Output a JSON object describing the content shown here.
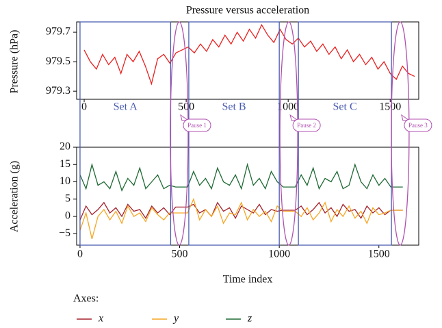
{
  "chart_data": [
    {
      "type": "line",
      "title": "Pressure versus acceleration",
      "ylabel": "Pressure (hPa)",
      "x": [
        0,
        30,
        60,
        90,
        120,
        150,
        180,
        210,
        240,
        270,
        300,
        330,
        360,
        390,
        420,
        450,
        480,
        510,
        540,
        570,
        600,
        630,
        660,
        690,
        720,
        750,
        780,
        810,
        840,
        870,
        900,
        930,
        960,
        990,
        1020,
        1050,
        1080,
        1110,
        1140,
        1170,
        1200,
        1230,
        1260,
        1290,
        1320,
        1350,
        1380,
        1410,
        1440,
        1470,
        1500,
        1530,
        1560,
        1590,
        1620
      ],
      "values": [
        979.58,
        979.5,
        979.45,
        979.55,
        979.48,
        979.53,
        979.42,
        979.55,
        979.5,
        979.57,
        979.47,
        979.35,
        979.52,
        979.55,
        979.49,
        979.56,
        979.58,
        979.6,
        979.56,
        979.62,
        979.57,
        979.65,
        979.6,
        979.68,
        979.62,
        979.7,
        979.64,
        979.72,
        979.66,
        979.75,
        979.68,
        979.63,
        979.72,
        979.65,
        979.62,
        979.66,
        979.6,
        979.64,
        979.57,
        979.62,
        979.55,
        979.6,
        979.52,
        979.58,
        979.5,
        979.55,
        979.48,
        979.53,
        979.45,
        979.5,
        979.42,
        979.38,
        979.47,
        979.42,
        979.4
      ],
      "color": "#e8201f",
      "xlim": [
        -37,
        1640
      ],
      "xticks": [
        0,
        500,
        1000,
        1500
      ],
      "ylim": [
        979.245,
        979.77
      ],
      "yticks": [
        979.3,
        979.5,
        979.7
      ]
    },
    {
      "type": "line",
      "xlabel": "Time index",
      "ylabel": "Acceleration (g)",
      "legend_title": "Axes:",
      "x": [
        0,
        30,
        60,
        90,
        120,
        150,
        180,
        210,
        240,
        270,
        300,
        330,
        360,
        390,
        420,
        450,
        480,
        510,
        540,
        570,
        600,
        630,
        660,
        690,
        720,
        750,
        780,
        810,
        840,
        870,
        900,
        930,
        960,
        990,
        1020,
        1050,
        1080,
        1110,
        1140,
        1170,
        1200,
        1230,
        1260,
        1290,
        1320,
        1350,
        1380,
        1410,
        1440,
        1470,
        1500,
        1530,
        1560,
        1590,
        1620
      ],
      "series": [
        {
          "name": "z",
          "color": "#1e6a34",
          "values": [
            12,
            8,
            15,
            9,
            10,
            8,
            13,
            7.5,
            11,
            9,
            14,
            8,
            10,
            12,
            8,
            9,
            8.5,
            8.5,
            8.5,
            13,
            9,
            11,
            8,
            14,
            10,
            9,
            12,
            8,
            15,
            9,
            11,
            8,
            13,
            10,
            8.5,
            8.5,
            8.5,
            12,
            9,
            14,
            8,
            11,
            10,
            13,
            8,
            9,
            15,
            10,
            8,
            12,
            9,
            11,
            8.5,
            8.5,
            8.5
          ]
        },
        {
          "name": "x",
          "color": "#a3202a",
          "values": [
            -1,
            3,
            0.5,
            2,
            4,
            1,
            2.5,
            0,
            3.5,
            1.5,
            2,
            -0.5,
            3,
            1,
            2.5,
            0.5,
            2.7,
            2.7,
            2.7,
            3.5,
            1,
            2,
            0,
            4,
            1.5,
            2.5,
            -0.5,
            3,
            2,
            1,
            3.5,
            0.5,
            2,
            1.5,
            1.8,
            1.8,
            1.8,
            3,
            0.5,
            2,
            4,
            1,
            2.5,
            0,
            3.5,
            1.5,
            2,
            -0.5,
            3,
            1,
            2.5,
            0.5,
            1.8,
            1.8,
            1.8
          ]
        },
        {
          "name": "y",
          "color": "#f5a623",
          "values": [
            -4,
            1,
            -6.5,
            0,
            2,
            -1,
            1.5,
            -2,
            3,
            0,
            1,
            -1.5,
            2.5,
            0.5,
            -1,
            1,
            1,
            1,
            1,
            5,
            -1,
            2,
            0,
            3,
            -2,
            1,
            0.5,
            4,
            -1,
            2,
            0,
            1.5,
            -1.5,
            3,
            1.5,
            1.5,
            1.5,
            0,
            2.5,
            -1,
            1,
            4,
            -1.5,
            2,
            0,
            3,
            -0.5,
            1.5,
            -2,
            2.5,
            0.5,
            1,
            1.8,
            1.8,
            1.8
          ]
        }
      ],
      "legend_order": [
        "x",
        "y",
        "z"
      ],
      "xlim": [
        -17,
        1700
      ],
      "xticks": [
        0,
        500,
        1000,
        1500
      ],
      "ylim": [
        -8.3,
        20
      ],
      "yticks": [
        {
          "value": -5,
          "label": "−5"
        },
        0,
        5,
        10,
        15,
        20
      ],
      "sets": [
        {
          "label": "Set A",
          "start": 0,
          "end": 455
        },
        {
          "label": "Set B",
          "start": 546,
          "end": 1000
        },
        {
          "label": "Set C",
          "start": 1096,
          "end": 1563
        }
      ],
      "pauses": [
        {
          "label": "Pause 1",
          "center": 498
        },
        {
          "label": "Pause 2",
          "center": 1048
        },
        {
          "label": "Pause 3",
          "center": 1607
        }
      ]
    }
  ]
}
